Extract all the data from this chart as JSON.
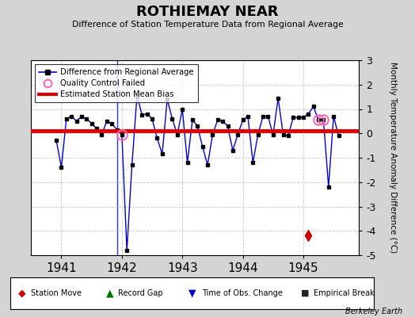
{
  "title": "ROTHIEMAY NEAR",
  "subtitle": "Difference of Station Temperature Data from Regional Average",
  "ylabel": "Monthly Temperature Anomaly Difference (°C)",
  "credit": "Berkeley Earth",
  "xlim": [
    1940.5,
    1945.92
  ],
  "ylim": [
    -5,
    3
  ],
  "yticks": [
    -5,
    -4,
    -3,
    -2,
    -1,
    0,
    1,
    2,
    3
  ],
  "xticks": [
    1941,
    1942,
    1943,
    1944,
    1945
  ],
  "bias_value": 0.1,
  "background_color": "#d4d4d4",
  "plot_bg_color": "#ffffff",
  "time_series": [
    1940.917,
    1941.0,
    1941.083,
    1941.167,
    1941.25,
    1941.333,
    1941.417,
    1941.5,
    1941.583,
    1941.667,
    1941.75,
    1941.833,
    1941.917,
    1942.0,
    1942.083,
    1942.167,
    1942.25,
    1942.333,
    1942.417,
    1942.5,
    1942.583,
    1942.667,
    1942.75,
    1942.833,
    1942.917,
    1943.0,
    1943.083,
    1943.167,
    1943.25,
    1943.333,
    1943.417,
    1943.5,
    1943.583,
    1943.667,
    1943.75,
    1943.833,
    1943.917,
    1944.0,
    1944.083,
    1944.167,
    1944.25,
    1944.333,
    1944.417,
    1944.5,
    1944.583,
    1944.667,
    1944.75,
    1944.833,
    1944.917,
    1945.0,
    1945.083,
    1945.167,
    1945.25,
    1945.333,
    1945.417,
    1945.5,
    1945.583
  ],
  "values": [
    -0.3,
    -1.4,
    0.6,
    0.7,
    0.5,
    0.7,
    0.6,
    0.4,
    0.2,
    -0.05,
    0.5,
    0.4,
    0.15,
    -0.05,
    -4.8,
    -1.3,
    1.55,
    0.75,
    0.8,
    0.6,
    -0.2,
    -0.85,
    1.4,
    0.6,
    -0.05,
    1.0,
    -1.2,
    0.55,
    0.3,
    -0.55,
    -1.3,
    -0.05,
    0.55,
    0.5,
    0.3,
    -0.7,
    -0.05,
    0.55,
    0.7,
    -1.2,
    -0.05,
    0.7,
    0.7,
    -0.07,
    1.45,
    -0.05,
    -0.1,
    0.65,
    0.65,
    0.65,
    0.8,
    1.1,
    0.55,
    0.55,
    -2.2,
    0.7,
    -0.1
  ],
  "qc_failed_indices": [
    13,
    52,
    53
  ],
  "station_move_time": 1945.083,
  "station_move_y": -4.2,
  "obs_change_time": 1941.917,
  "line_color": "#0000cc",
  "marker_color": "#000000",
  "bias_color": "#dd0000",
  "qc_color": "#ff69b4",
  "station_move_color": "#cc0000",
  "obs_change_color": "#0000cc",
  "record_gap_color": "#007700",
  "empirical_break_color": "#222222",
  "grid_color": "#bbbbbb"
}
